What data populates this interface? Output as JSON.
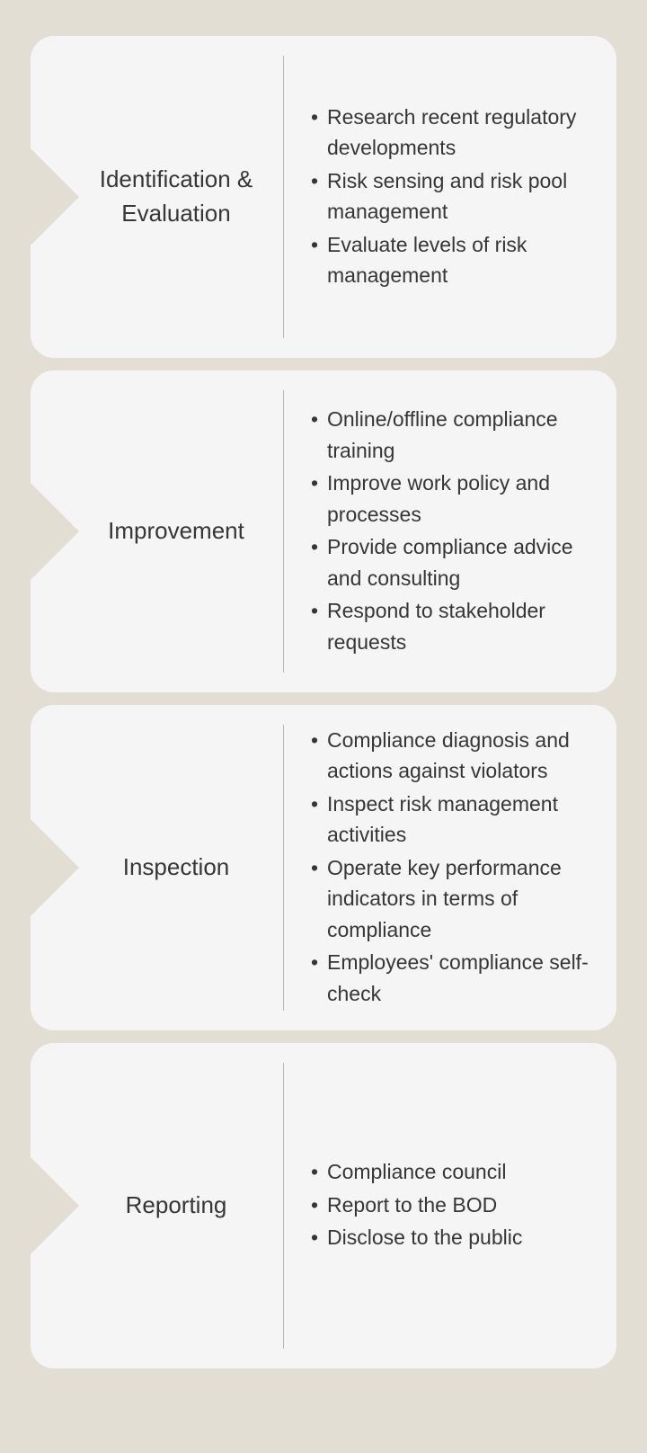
{
  "type": "infographic",
  "background_color": "#e3ded4",
  "card_background": "#f5f5f5",
  "text_color": "#363636",
  "divider_color": "#b8b8b8",
  "card_border_radius": 26,
  "arrow_size": 55,
  "title_fontsize": 26,
  "item_fontsize": 23,
  "sections": [
    {
      "title": "Identification & Evaluation",
      "items": [
        "Research recent regulatory developments",
        "Risk sensing and risk pool management",
        "Evaluate levels of risk management"
      ]
    },
    {
      "title": "Improvement",
      "items": [
        "Online/offline compliance training",
        "Improve work policy and processes",
        "Provide compliance advice and consulting",
        "Respond to stakeholder requests"
      ]
    },
    {
      "title": "Inspection",
      "items": [
        "Compliance diagnosis and actions against violators",
        "Inspect risk management activities",
        "Operate key performance indicators in terms of compliance",
        "Employees' compliance self-check"
      ]
    },
    {
      "title": "Reporting",
      "items": [
        "Compliance council",
        "Report to the BOD",
        "Disclose to the public"
      ]
    }
  ]
}
